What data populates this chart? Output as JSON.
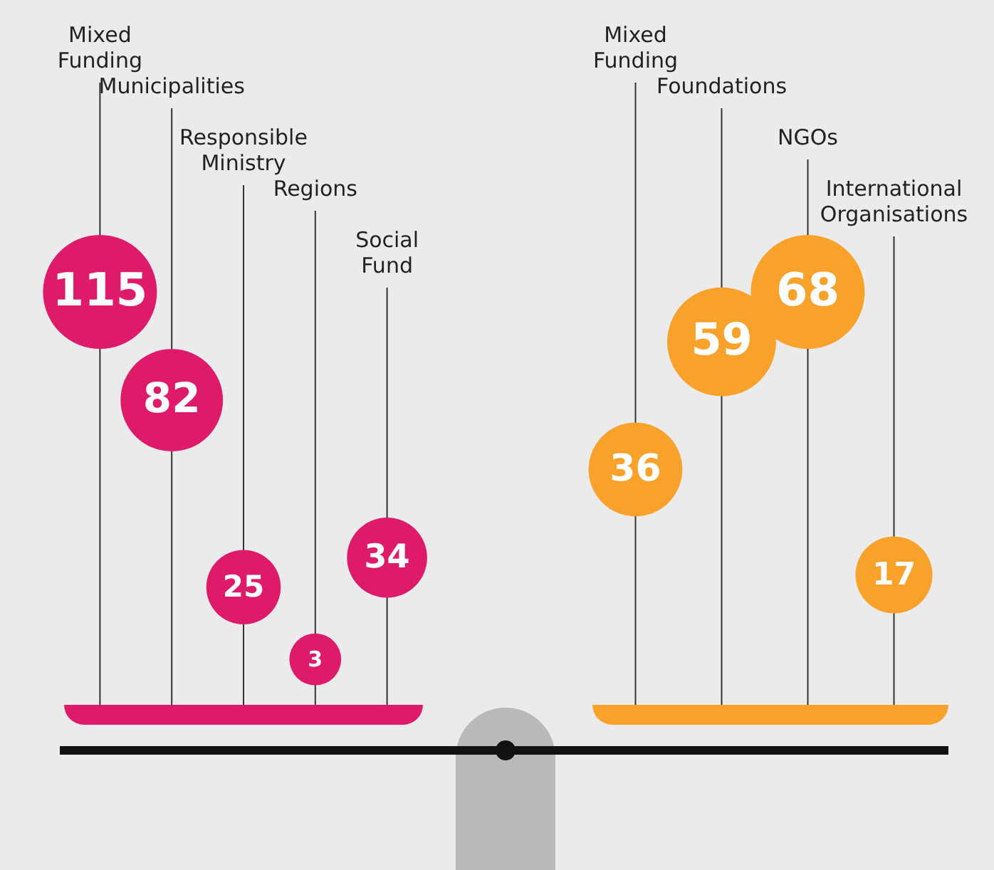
{
  "chart_data": [
    {
      "type": "other",
      "categories": [
        "Mixed Funding",
        "Municipalities",
        "Responsible Ministry",
        "Regions",
        "Social Fund"
      ],
      "values": [
        115,
        82,
        25,
        3,
        34
      ],
      "color": "#de1a6a",
      "data_labels": true
    },
    {
      "type": "other",
      "categories": [
        "Mixed Funding",
        "Foundations",
        "NGOs",
        "International Organisations"
      ],
      "values": [
        36,
        59,
        68,
        17
      ],
      "color": "#f8a12b",
      "data_labels": true
    }
  ]
}
